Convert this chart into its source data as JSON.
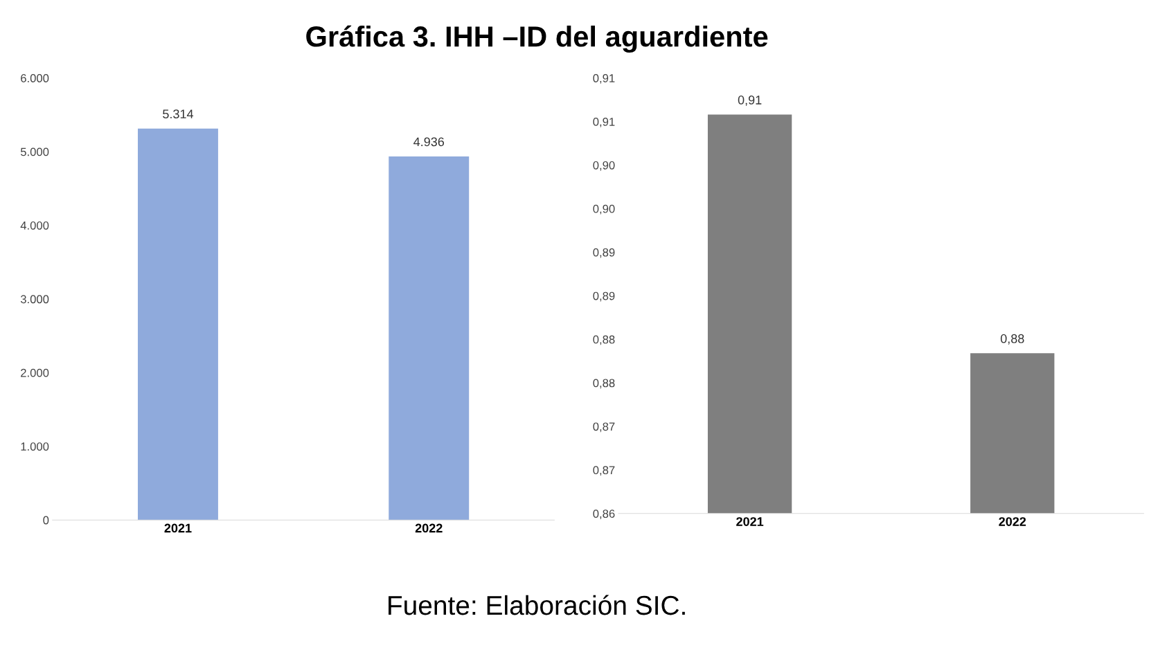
{
  "chart_data": [
    {
      "type": "bar",
      "title": "Gráfica 3. IHH –ID del aguardiente",
      "categories": [
        "2021",
        "2022"
      ],
      "values": [
        5314,
        4936
      ],
      "value_labels": [
        "5.314",
        "4.936"
      ],
      "color": "#8faadc",
      "ylim": [
        0,
        6000
      ],
      "yticks": [
        0,
        {
          "value": 1000,
          "label": "1.000"
        },
        {
          "value": 2000,
          "label": "2.000"
        },
        {
          "value": 3000,
          "label": "3.000"
        },
        {
          "value": 4000,
          "label": "4.000"
        },
        {
          "value": 5000,
          "label": "5.000"
        },
        {
          "value": 6000,
          "label": "6.000"
        }
      ],
      "grid": false,
      "legend": false
    },
    {
      "type": "bar",
      "categories": [
        "2021",
        "2022"
      ],
      "values": [
        0.9058,
        0.8784
      ],
      "value_labels": [
        "0,91",
        "0,88"
      ],
      "color": "#7f7f7f",
      "ylim": [
        0.86,
        0.91
      ],
      "yticks": [
        {
          "value": 0.86,
          "label": "0,86"
        },
        {
          "value": 0.865,
          "label": "0,87"
        },
        {
          "value": 0.87,
          "label": "0,87"
        },
        {
          "value": 0.875,
          "label": "0,88"
        },
        {
          "value": 0.88,
          "label": "0,88"
        },
        {
          "value": 0.885,
          "label": "0,89"
        },
        {
          "value": 0.89,
          "label": "0,89"
        },
        {
          "value": 0.895,
          "label": "0,90"
        },
        {
          "value": 0.9,
          "label": "0,90"
        },
        {
          "value": 0.905,
          "label": "0,91"
        },
        {
          "value": 0.91,
          "label": "0,91"
        }
      ],
      "grid": false,
      "legend": false,
      "annotations": [
        "Fuente: Elaboración SIC."
      ]
    }
  ]
}
